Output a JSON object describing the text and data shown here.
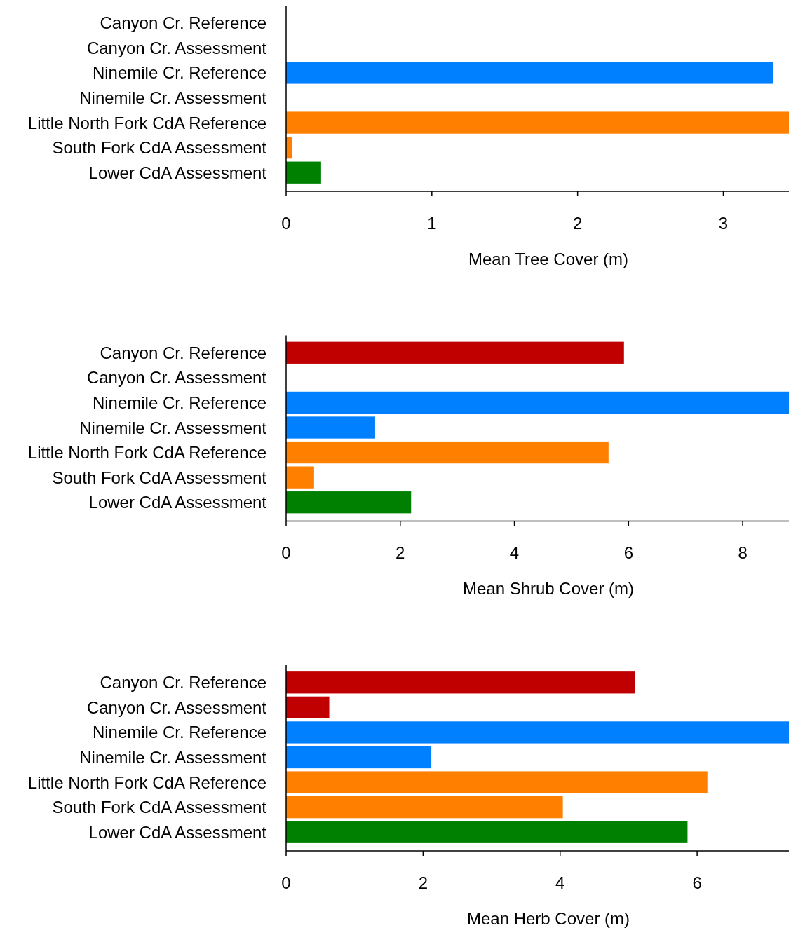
{
  "chart_data": [
    {
      "type": "bar",
      "orientation": "horizontal",
      "categories": [
        "Canyon Cr. Reference",
        "Canyon Cr. Assessment",
        "Ninemile Cr. Reference",
        "Ninemile Cr. Assessment",
        "Little North Fork CdA Reference",
        "South Fork CdA Assessment",
        "Lower CdA Assessment"
      ],
      "values": [
        null,
        null,
        3.34,
        null,
        3.45,
        0.04,
        0.24
      ],
      "colors": [
        null,
        null,
        "#0080ff",
        null,
        "#ff8000",
        "#ff8000",
        "#008000"
      ],
      "xlim": [
        0,
        3.45
      ],
      "xticks": [
        0,
        1,
        2,
        3
      ],
      "xlabel": "Mean Tree Cover (m)"
    },
    {
      "type": "bar",
      "orientation": "horizontal",
      "categories": [
        "Canyon Cr. Reference",
        "Canyon Cr. Assessment",
        "Ninemile Cr. Reference",
        "Ninemile Cr. Assessment",
        "Little North Fork CdA Reference",
        "South Fork CdA Assessment",
        "Lower CdA Assessment"
      ],
      "values": [
        5.92,
        null,
        8.81,
        1.56,
        5.65,
        0.49,
        2.19
      ],
      "colors": [
        "#c00000",
        null,
        "#0080ff",
        "#0080ff",
        "#ff8000",
        "#ff8000",
        "#008000"
      ],
      "xlim": [
        0,
        8.81
      ],
      "xticks": [
        0,
        2,
        4,
        6,
        8
      ],
      "xlabel": "Mean Shrub Cover (m)"
    },
    {
      "type": "bar",
      "orientation": "horizontal",
      "categories": [
        "Canyon Cr. Reference",
        "Canyon Cr. Assessment",
        "Ninemile Cr. Reference",
        "Ninemile Cr. Assessment",
        "Little North Fork CdA Reference",
        "South Fork CdA Assessment",
        "Lower CdA Assessment"
      ],
      "values": [
        5.09,
        0.63,
        7.34,
        2.12,
        6.15,
        4.04,
        5.86
      ],
      "colors": [
        "#c00000",
        "#c00000",
        "#0080ff",
        "#0080ff",
        "#ff8000",
        "#ff8000",
        "#008000"
      ],
      "xlim": [
        0,
        7.34
      ],
      "xticks": [
        0,
        2,
        4,
        6
      ],
      "xlabel": "Mean Herb Cover (m)"
    }
  ]
}
